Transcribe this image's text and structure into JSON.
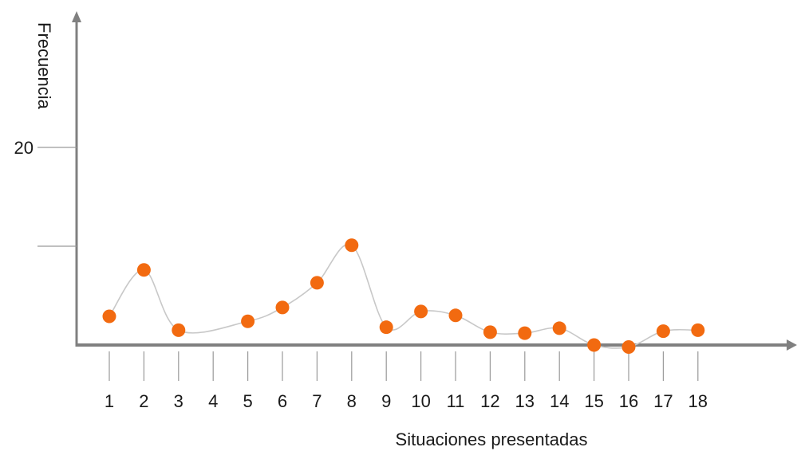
{
  "chart_data": {
    "type": "line",
    "xlabel": "Situaciones presentadas",
    "ylabel": "Frecuencia",
    "x": [
      1,
      2,
      3,
      4,
      5,
      6,
      7,
      8,
      9,
      10,
      11,
      12,
      13,
      14,
      15,
      16,
      17,
      18
    ],
    "x_tick_labels": [
      "1",
      "2",
      "3",
      "4",
      "5",
      "6",
      "7",
      "8",
      "9",
      "10",
      "11",
      "12",
      "13",
      "14",
      "15",
      "16",
      "17",
      "18"
    ],
    "y_tick_values": [
      10,
      20
    ],
    "y_tick_labels": [
      "",
      "20"
    ],
    "ylim": [
      0,
      30
    ],
    "series": [
      {
        "points": [
          {
            "x": 1,
            "y": 2.9
          },
          {
            "x": 2,
            "y": 7.6
          },
          {
            "x": 3,
            "y": 1.5
          },
          {
            "x": 5,
            "y": 2.4
          },
          {
            "x": 6,
            "y": 3.8
          },
          {
            "x": 7,
            "y": 6.3
          },
          {
            "x": 8,
            "y": 10.1
          },
          {
            "x": 9,
            "y": 1.8
          },
          {
            "x": 10,
            "y": 3.4
          },
          {
            "x": 11,
            "y": 3.0
          },
          {
            "x": 12,
            "y": 1.3
          },
          {
            "x": 13,
            "y": 1.2
          },
          {
            "x": 14,
            "y": 1.7
          },
          {
            "x": 15,
            "y": 0.0
          },
          {
            "x": 16,
            "y": -0.2
          },
          {
            "x": 17,
            "y": 1.4
          },
          {
            "x": 18,
            "y": 1.5
          }
        ]
      }
    ],
    "colors": {
      "marker": "#f26a10",
      "line": "#c8c8c8",
      "axis": "#808080",
      "tick": "#9a9a9a"
    },
    "grid": false,
    "legend": "none"
  }
}
